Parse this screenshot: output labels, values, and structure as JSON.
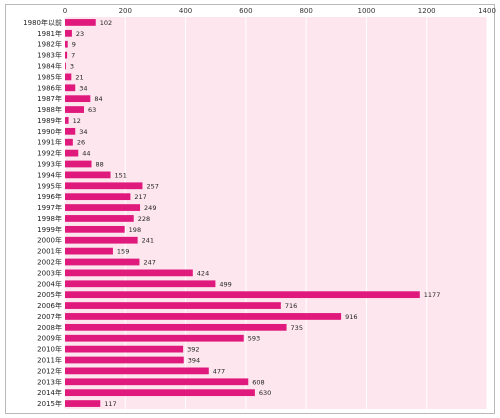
{
  "chart_data": {
    "type": "bar",
    "orientation": "horizontal",
    "categories": [
      "1980年以前",
      "1981年",
      "1982年",
      "1983年",
      "1984年",
      "1985年",
      "1986年",
      "1987年",
      "1988年",
      "1989年",
      "1990年",
      "1991年",
      "1992年",
      "1993年",
      "1994年",
      "1995年",
      "1996年",
      "1997年",
      "1998年",
      "1999年",
      "2000年",
      "2001年",
      "2002年",
      "2003年",
      "2004年",
      "2005年",
      "2006年",
      "2007年",
      "2008年",
      "2009年",
      "2010年",
      "2011年",
      "2012年",
      "2013年",
      "2014年",
      "2015年"
    ],
    "values": [
      102,
      23,
      9,
      7,
      3,
      21,
      34,
      84,
      63,
      12,
      34,
      26,
      44,
      88,
      151,
      257,
      217,
      249,
      228,
      198,
      241,
      159,
      247,
      424,
      499,
      1177,
      716,
      916,
      735,
      593,
      392,
      394,
      477,
      608,
      630,
      117
    ],
    "xlim": [
      0,
      1400
    ],
    "xticks": [
      0,
      200,
      400,
      600,
      800,
      1000,
      1200,
      1400
    ],
    "axis_position": "top",
    "grid": true,
    "data_labels": true,
    "colors": {
      "bar": "#e0197d",
      "plot_background": "#fde6ee",
      "grid": "#ffffff"
    }
  }
}
